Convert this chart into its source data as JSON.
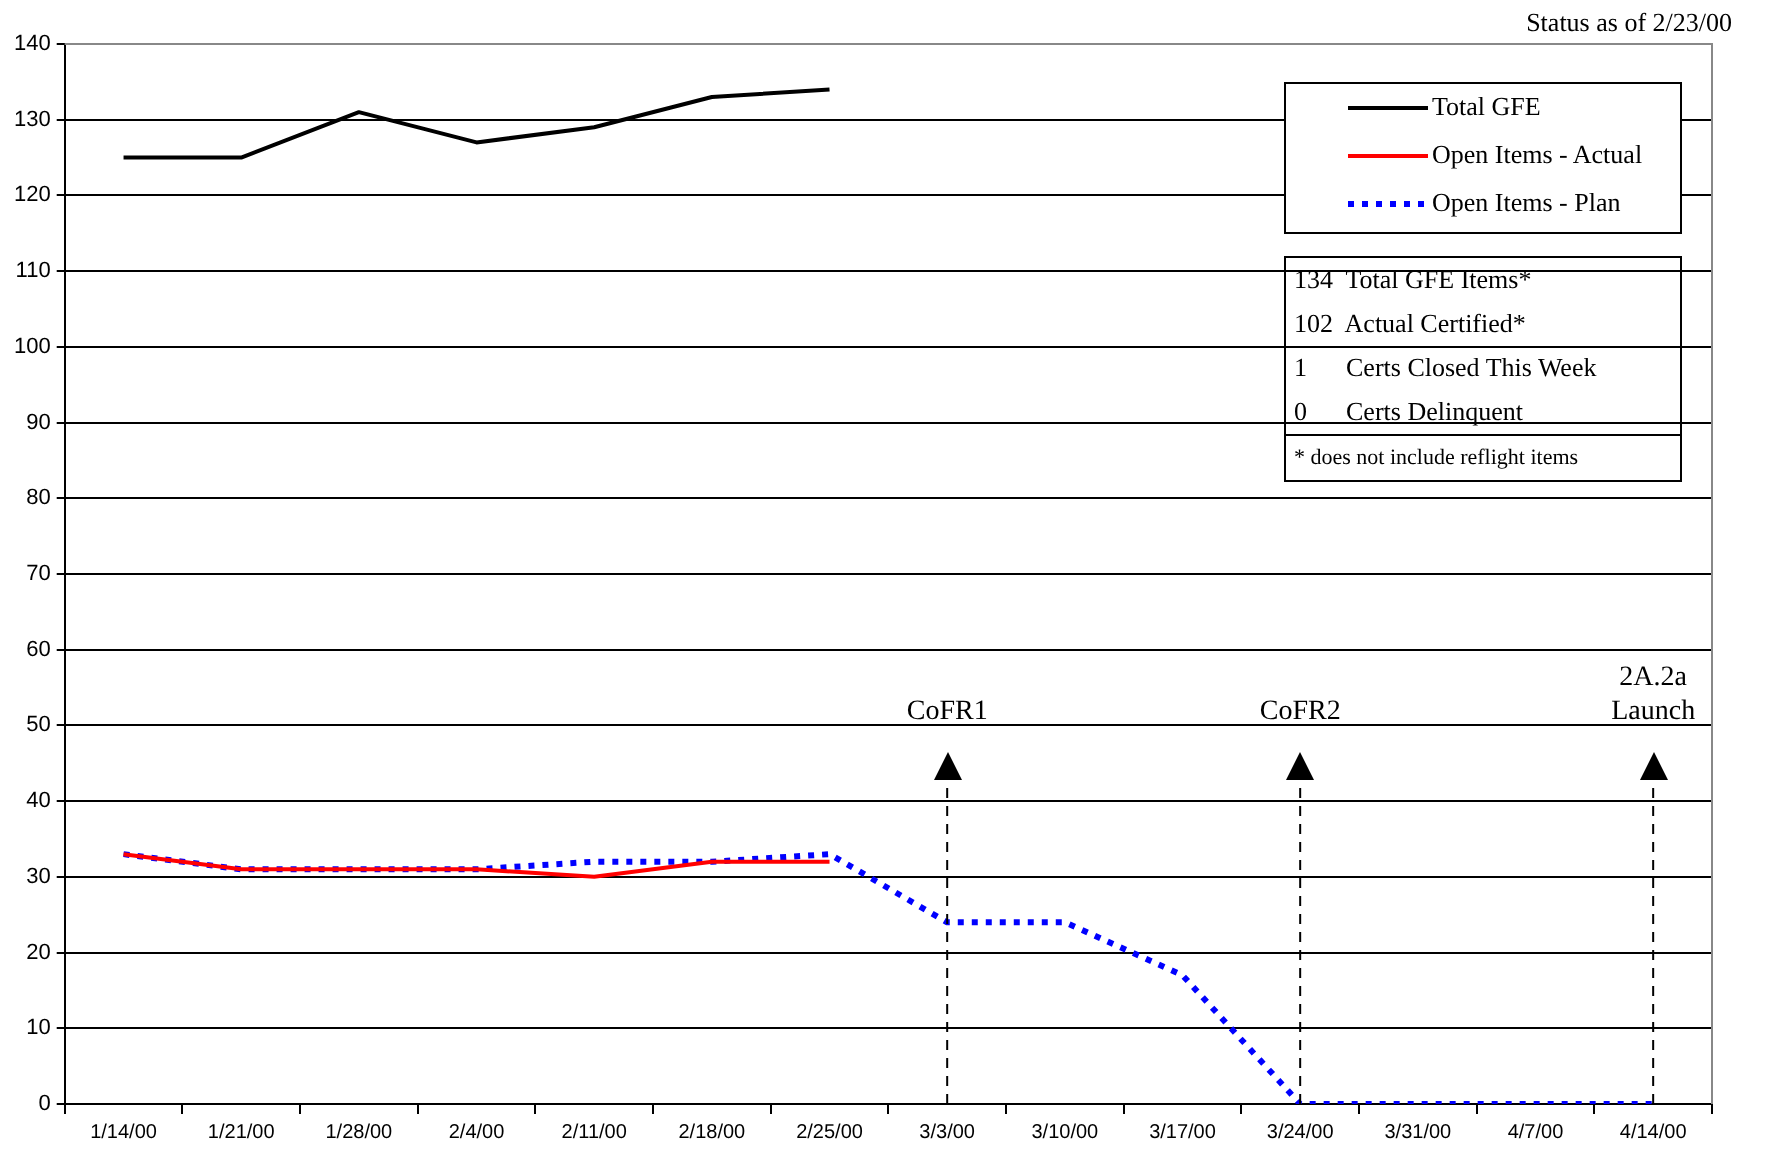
{
  "chart_data": {
    "type": "line",
    "categories": [
      "1/14/00",
      "1/21/00",
      "1/28/00",
      "2/4/00",
      "2/11/00",
      "2/18/00",
      "2/25/00",
      "3/3/00",
      "3/10/00",
      "3/17/00",
      "3/24/00",
      "3/31/00",
      "4/7/00",
      "4/14/00"
    ],
    "series": [
      {
        "name": "Total GFE",
        "color": "#000000",
        "line_style": "solid",
        "values": [
          125,
          125,
          131,
          127,
          129,
          133,
          134,
          null,
          null,
          null,
          null,
          null,
          null,
          null
        ]
      },
      {
        "name": "Open Items - Actual",
        "color": "#ff0000",
        "line_style": "solid",
        "values": [
          33,
          31,
          31,
          31,
          30,
          32,
          32,
          null,
          null,
          null,
          null,
          null,
          null,
          null
        ]
      },
      {
        "name": "Open Items - Plan",
        "color": "#0000ff",
        "line_style": "dotted",
        "values": [
          33,
          31,
          31,
          31,
          32,
          32,
          33,
          24,
          24,
          17,
          0,
          0,
          0,
          0
        ]
      }
    ],
    "ylim": [
      0,
      140
    ],
    "yticks": [
      0,
      10,
      20,
      30,
      40,
      50,
      60,
      70,
      80,
      90,
      100,
      110,
      120,
      130,
      140
    ],
    "grid": "y",
    "legend": "top right",
    "marker": "none",
    "ref_lines": [
      {
        "axis": "x",
        "value": "3/3/00",
        "label": "CoFR1",
        "line_style": "dashed",
        "color": "#000000"
      },
      {
        "axis": "x",
        "value": "3/24/00",
        "label": "CoFR2",
        "line_style": "dashed",
        "color": "#000000"
      },
      {
        "axis": "x",
        "value": "4/14/00",
        "label": "2A.2a Launch",
        "line_style": "dashed",
        "color": "#000000"
      }
    ],
    "annotations": [
      "Status as of 2/23/00",
      "134  Total GFE Items*",
      "102  Actual Certified*",
      "1      Certs Closed This Week",
      "0      Certs Delinquent",
      "* does not include reflight items"
    ]
  }
}
